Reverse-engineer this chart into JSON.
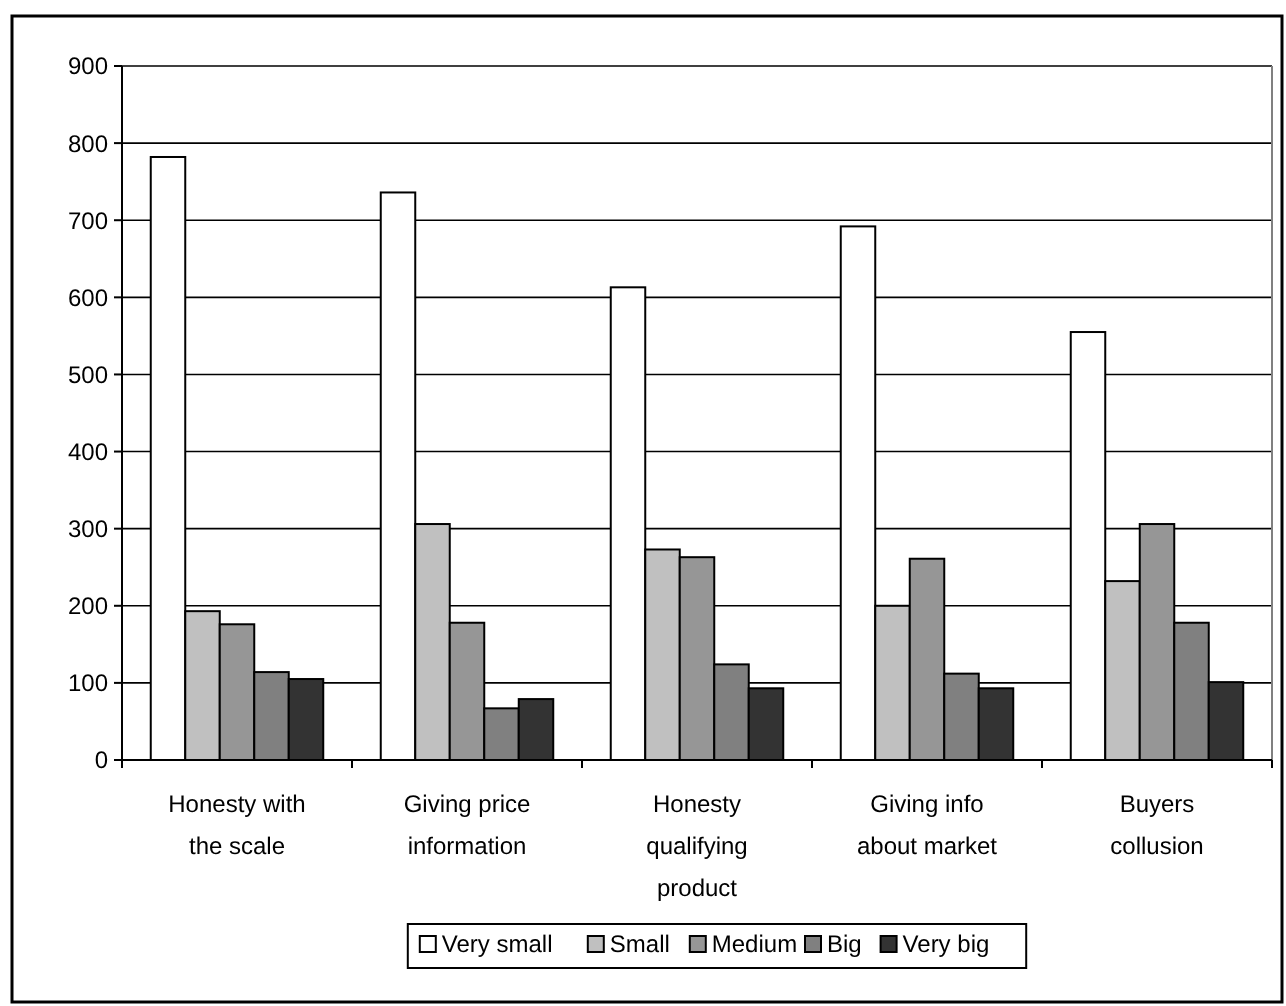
{
  "chart_data": {
    "type": "bar",
    "categories": [
      "Honesty with the scale",
      "Giving price information",
      "Honesty qualifying product",
      "Giving info about market",
      "Buyers collusion"
    ],
    "series": [
      {
        "name": "Very small",
        "color": "#ffffff",
        "values": [
          782,
          736,
          613,
          692,
          555
        ]
      },
      {
        "name": "Small",
        "color": "#c0c0c0",
        "values": [
          193,
          306,
          273,
          200,
          232
        ]
      },
      {
        "name": "Medium",
        "color": "#969696",
        "values": [
          176,
          178,
          263,
          261,
          306
        ]
      },
      {
        "name": "Big",
        "color": "#808080",
        "values": [
          114,
          67,
          124,
          112,
          178
        ]
      },
      {
        "name": "Very big",
        "color": "#333333",
        "values": [
          105,
          79,
          93,
          93,
          101
        ]
      }
    ],
    "ylim": [
      0,
      900
    ],
    "yticks": [
      0,
      100,
      200,
      300,
      400,
      500,
      600,
      700,
      800,
      900
    ],
    "grid": "y",
    "legend": "bottom"
  }
}
